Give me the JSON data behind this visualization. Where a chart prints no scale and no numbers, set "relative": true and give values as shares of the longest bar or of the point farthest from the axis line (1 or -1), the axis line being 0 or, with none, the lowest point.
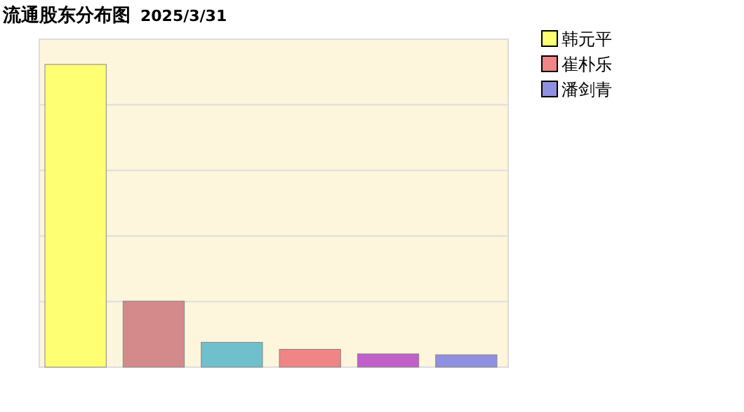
{
  "chart_data": {
    "type": "bar",
    "title": "流通股东分布图",
    "subtitle": "2025/3/31",
    "relative": true,
    "grid": "y",
    "legend": "right",
    "categories": [
      null
    ],
    "series": [
      {
        "name": "韩元平",
        "color": "#ffff73",
        "values": [
          1
        ]
      },
      {
        "color": "#d48a8a",
        "values": [
          0.218
        ]
      },
      {
        "color": "#6fc0cc",
        "values": [
          0.082
        ]
      },
      {
        "name": "崔朴乐",
        "color": "#f08585",
        "values": [
          0.059
        ]
      },
      {
        "color": "#c060c8",
        "values": [
          0.044
        ]
      },
      {
        "name": "潘剑青",
        "color": "#9090e0",
        "values": [
          0.041
        ]
      }
    ]
  }
}
